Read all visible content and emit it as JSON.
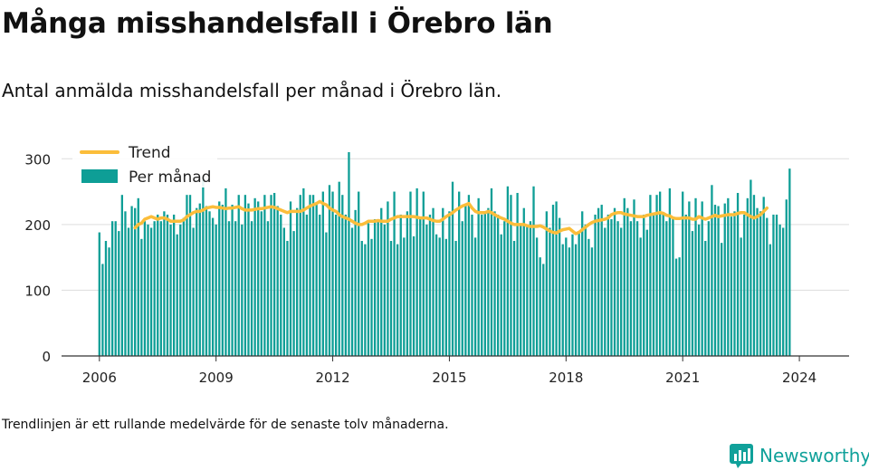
{
  "title": "Många misshandelsfall i Örebro län",
  "subtitle": "Antal anmälda misshandelsfall per månad i Örebro län.",
  "note": "Trendlinjen är ett rullande medelvärde för de senaste tolv månaderna.",
  "brand": "Newsworthy",
  "colors": {
    "bars": "#0e9e96",
    "trend": "#fbbd3a",
    "grid": "#dddddd",
    "axis": "#333333",
    "brand": "#10a19a"
  },
  "chart_data": {
    "type": "bar",
    "x_start": "2006-01",
    "x_ticks": [
      "2006",
      "2009",
      "2012",
      "2015",
      "2018",
      "2021",
      "2024"
    ],
    "y_ticks": [
      0,
      100,
      200,
      300
    ],
    "ylim": [
      0,
      310
    ],
    "grid": true,
    "legend_position": "top-left",
    "series": [
      {
        "name": "Per månad",
        "kind": "bar",
        "values": [
          188,
          140,
          175,
          165,
          205,
          205,
          190,
          245,
          220,
          195,
          228,
          225,
          240,
          178,
          205,
          200,
          195,
          205,
          215,
          205,
          220,
          215,
          200,
          215,
          185,
          200,
          210,
          245,
          245,
          195,
          225,
          232,
          270,
          228,
          220,
          210,
          200,
          235,
          230,
          255,
          205,
          230,
          205,
          245,
          200,
          245,
          232,
          205,
          240,
          235,
          220,
          245,
          205,
          245,
          248,
          228,
          215,
          195,
          175,
          235,
          190,
          225,
          245,
          255,
          215,
          245,
          245,
          230,
          215,
          250,
          188,
          260,
          250,
          215,
          265,
          245,
          215,
          310,
          195,
          222,
          250,
          175,
          170,
          202,
          178,
          208,
          205,
          225,
          200,
          235,
          175,
          250,
          170,
          215,
          180,
          220,
          250,
          182,
          255,
          210,
          250,
          200,
          215,
          225,
          185,
          180,
          225,
          178,
          220,
          265,
          175,
          250,
          205,
          230,
          245,
          215,
          180,
          240,
          215,
          220,
          225,
          255,
          220,
          215,
          185,
          205,
          258,
          245,
          175,
          248,
          200,
          225,
          200,
          205,
          258,
          180,
          150,
          140,
          220,
          195,
          230,
          235,
          210,
          170,
          180,
          165,
          185,
          170,
          190,
          220,
          200,
          178,
          165,
          215,
          225,
          230,
          195,
          215,
          208,
          225,
          205,
          195,
          240,
          225,
          205,
          238,
          205,
          180,
          215,
          192,
          245,
          215,
          245,
          250,
          215,
          205,
          255,
          210,
          148,
          150,
          250,
          215,
          235,
          190,
          240,
          200,
          235,
          175,
          205,
          260,
          230,
          228,
          172,
          232,
          240,
          212,
          220,
          248,
          180,
          215,
          240,
          268,
          245,
          225,
          220,
          242,
          210,
          170,
          215,
          215,
          200,
          195,
          238,
          285
        ]
      },
      {
        "name": "Trend",
        "kind": "line",
        "start_index": 11,
        "values": [
          195,
          200,
          202,
          208,
          210,
          212,
          210,
          208,
          210,
          210,
          208,
          205,
          205,
          205,
          205,
          207,
          212,
          215,
          218,
          220,
          220,
          222,
          225,
          226,
          227,
          226,
          226,
          225,
          224,
          225,
          225,
          226,
          227,
          224,
          222,
          222,
          222,
          223,
          224,
          224,
          225,
          226,
          227,
          226,
          224,
          222,
          220,
          218,
          220,
          220,
          220,
          220,
          222,
          225,
          228,
          230,
          232,
          235,
          232,
          230,
          225,
          222,
          220,
          215,
          212,
          210,
          208,
          205,
          202,
          200,
          200,
          202,
          205,
          205,
          205,
          206,
          205,
          205,
          205,
          208,
          210,
          212,
          212,
          212,
          212,
          212,
          212,
          211,
          210,
          210,
          210,
          208,
          206,
          205,
          205,
          208,
          212,
          215,
          218,
          222,
          225,
          228,
          230,
          232,
          225,
          220,
          218,
          218,
          218,
          220,
          218,
          215,
          212,
          210,
          208,
          205,
          202,
          200,
          200,
          200,
          200,
          198,
          197,
          197,
          197,
          198,
          196,
          193,
          190,
          188,
          187,
          190,
          192,
          193,
          194,
          190,
          186,
          188,
          192,
          196,
          200,
          203,
          205,
          206,
          207,
          208,
          210,
          215,
          217,
          218,
          218,
          216,
          215,
          214,
          213,
          212,
          212,
          212,
          214,
          215,
          216,
          217,
          218,
          217,
          214,
          213,
          210,
          209,
          209,
          210,
          210,
          210,
          208,
          208,
          212,
          210,
          208,
          210,
          212,
          214,
          212,
          213,
          214,
          215,
          215,
          215,
          217,
          218,
          218,
          215,
          212,
          210,
          212,
          215,
          220,
          225
        ]
      }
    ]
  }
}
